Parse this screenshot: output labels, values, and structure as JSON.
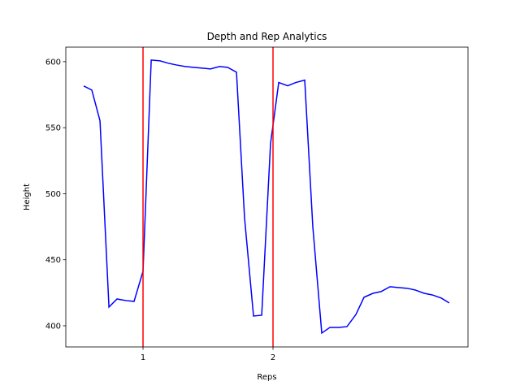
{
  "chart_data": {
    "type": "line",
    "title": "Depth and Rep Analytics",
    "x_label": "Reps",
    "y_label": "Height",
    "x": [
      0.544,
      0.606,
      0.669,
      0.738,
      0.8,
      0.869,
      0.931,
      1.0,
      1.063,
      1.131,
      1.194,
      1.256,
      1.325,
      1.388,
      1.456,
      1.519,
      1.588,
      1.65,
      1.719,
      1.781,
      1.85,
      1.913,
      1.981,
      2.044,
      2.113,
      2.175,
      2.244,
      2.306,
      2.375,
      2.438,
      2.506,
      2.569,
      2.638,
      2.7,
      2.769,
      2.831,
      2.9,
      2.963,
      3.031,
      3.094,
      3.163,
      3.225,
      3.294,
      3.356
    ],
    "values": [
      581.6,
      578.5,
      555.2,
      414.2,
      420.3,
      419.1,
      418.5,
      441.3,
      601.2,
      600.6,
      598.8,
      597.5,
      596.3,
      595.7,
      595.1,
      594.5,
      596.3,
      595.7,
      592.0,
      481.8,
      407.4,
      408.0,
      538.0,
      584.2,
      581.7,
      584.2,
      586.0,
      475.2,
      394.5,
      398.8,
      398.8,
      399.4,
      408.6,
      421.6,
      424.6,
      425.9,
      429.6,
      429.0,
      428.4,
      427.1,
      424.6,
      423.4,
      421.0,
      417.3
    ],
    "color": "#0000ff",
    "vlines": [
      1,
      2
    ],
    "vline_color": "#ff0000",
    "xlim": [
      0.406,
      3.5
    ],
    "xticks": [
      1,
      2
    ],
    "ylim": [
      384,
      611
    ],
    "yticks": [
      400,
      450,
      500,
      550,
      600
    ]
  }
}
